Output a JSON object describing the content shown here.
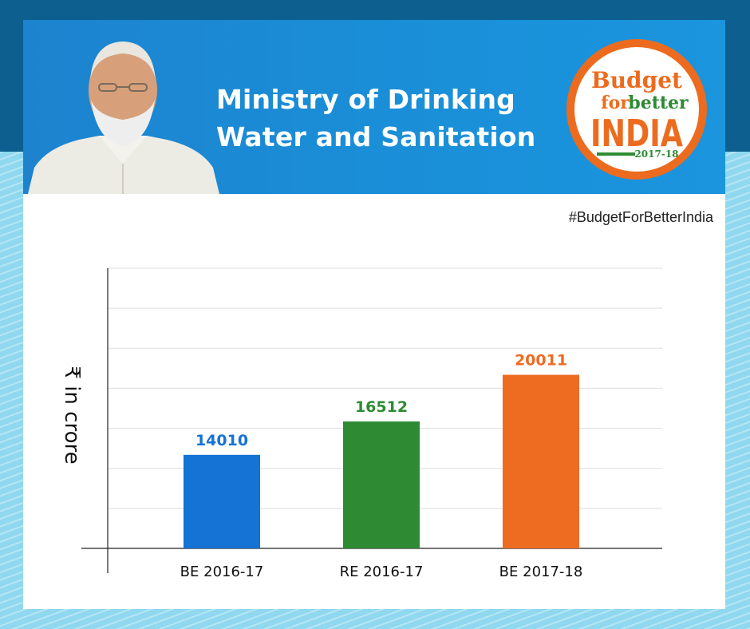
{
  "header": {
    "title_line1": "Ministry of Drinking",
    "title_line2": "Water and Sanitation"
  },
  "logo": {
    "line1": "Budget",
    "line2a": "for",
    "line2b": "better",
    "line3": "INDIA",
    "year": "2017-18"
  },
  "hashtag": "#BudgetForBetterIndia",
  "colors": {
    "header_blue": "#1a8fd8",
    "bar_blue": "#1473d4",
    "bar_green": "#2e8b34",
    "bar_orange": "#ee6b22"
  },
  "chart_data": {
    "type": "bar",
    "title": "",
    "xlabel": "",
    "ylabel": "₹ in crore",
    "categories": [
      "BE 2016-17",
      "RE 2016-17",
      "BE 2017-18"
    ],
    "values": [
      14010,
      16512,
      20011
    ],
    "value_labels": [
      "14010",
      "16512",
      "20011"
    ],
    "bar_colors": [
      "#1473d4",
      "#2e8b34",
      "#ee6b22"
    ],
    "ylim": [
      7000,
      28000
    ],
    "grid": true,
    "legend": "none"
  }
}
